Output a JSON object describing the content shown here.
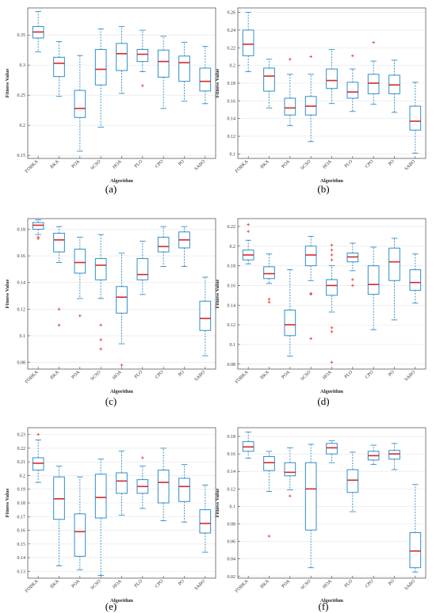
{
  "chart_data": [
    {
      "type": "box",
      "panel_label": "(a)",
      "xlabel": "Algorithm",
      "ylabel": "Fitness Value",
      "ylim": [
        0.145,
        0.395
      ],
      "yticks": [
        0.15,
        0.2,
        0.25,
        0.3,
        0.35
      ],
      "ytick_labels": [
        "0.15",
        "0.2",
        "0.25",
        "0.3",
        "0.35"
      ],
      "categories": [
        "FOBKA",
        "BKA",
        "POA",
        "SCSO",
        "HOA",
        "PLO",
        "CPO",
        "PO",
        "SABO"
      ],
      "boxes": [
        {
          "min": 0.322,
          "q1": 0.345,
          "median": 0.355,
          "q3": 0.364,
          "max": 0.389,
          "outliers": []
        },
        {
          "min": 0.248,
          "q1": 0.281,
          "median": 0.303,
          "q3": 0.313,
          "max": 0.339,
          "outliers": []
        },
        {
          "min": 0.157,
          "q1": 0.213,
          "median": 0.228,
          "q3": 0.258,
          "max": 0.316,
          "outliers": []
        },
        {
          "min": 0.197,
          "q1": 0.267,
          "median": 0.293,
          "q3": 0.326,
          "max": 0.36,
          "outliers": []
        },
        {
          "min": 0.253,
          "q1": 0.291,
          "median": 0.319,
          "q3": 0.336,
          "max": 0.364,
          "outliers": []
        },
        {
          "min": 0.289,
          "q1": 0.306,
          "median": 0.318,
          "q3": 0.326,
          "max": 0.358,
          "outliers": [
            0.266
          ]
        },
        {
          "min": 0.228,
          "q1": 0.28,
          "median": 0.306,
          "q3": 0.325,
          "max": 0.348,
          "outliers": []
        },
        {
          "min": 0.24,
          "q1": 0.273,
          "median": 0.304,
          "q3": 0.315,
          "max": 0.338,
          "outliers": []
        },
        {
          "min": 0.236,
          "q1": 0.257,
          "median": 0.273,
          "q3": 0.295,
          "max": 0.331,
          "outliers": []
        }
      ]
    },
    {
      "type": "box",
      "panel_label": "(b)",
      "xlabel": "Algorithm",
      "ylabel": "Fitness Value",
      "ylim": [
        0.095,
        0.265
      ],
      "yticks": [
        0.1,
        0.12,
        0.14,
        0.16,
        0.18,
        0.2,
        0.22,
        0.24,
        0.26
      ],
      "ytick_labels": [
        "0.1",
        "0.12",
        "0.14",
        "0.16",
        "0.18",
        "0.2",
        "0.22",
        "0.24",
        "0.26"
      ],
      "categories": [
        "FOBKA",
        "BKA",
        "POA",
        "SCSO",
        "HOA",
        "PLO",
        "CPO",
        "PO",
        "SABO"
      ],
      "boxes": [
        {
          "min": 0.193,
          "q1": 0.211,
          "median": 0.224,
          "q3": 0.24,
          "max": 0.26,
          "outliers": []
        },
        {
          "min": 0.152,
          "q1": 0.171,
          "median": 0.188,
          "q3": 0.197,
          "max": 0.207,
          "outliers": []
        },
        {
          "min": 0.132,
          "q1": 0.144,
          "median": 0.152,
          "q3": 0.163,
          "max": 0.19,
          "outliers": [
            0.207
          ]
        },
        {
          "min": 0.114,
          "q1": 0.144,
          "median": 0.154,
          "q3": 0.165,
          "max": 0.19,
          "outliers": [
            0.21
          ]
        },
        {
          "min": 0.157,
          "q1": 0.174,
          "median": 0.183,
          "q3": 0.196,
          "max": 0.218,
          "outliers": []
        },
        {
          "min": 0.148,
          "q1": 0.163,
          "median": 0.17,
          "q3": 0.181,
          "max": 0.196,
          "outliers": [
            0.211
          ]
        },
        {
          "min": 0.156,
          "q1": 0.168,
          "median": 0.18,
          "q3": 0.19,
          "max": 0.205,
          "outliers": [
            0.226
          ]
        },
        {
          "min": 0.147,
          "q1": 0.168,
          "median": 0.178,
          "q3": 0.189,
          "max": 0.206,
          "outliers": []
        },
        {
          "min": 0.101,
          "q1": 0.127,
          "median": 0.137,
          "q3": 0.154,
          "max": 0.181,
          "outliers": []
        }
      ]
    },
    {
      "type": "box",
      "panel_label": "(c)",
      "xlabel": "Algorithm",
      "ylabel": "Fitness Value",
      "ylim": [
        0.075,
        0.188
      ],
      "yticks": [
        0.08,
        0.1,
        0.12,
        0.14,
        0.16,
        0.18
      ],
      "ytick_labels": [
        "0.08",
        "0.1",
        "0.12",
        "0.14",
        "0.16",
        "0.18"
      ],
      "categories": [
        "FOBKA",
        "BKA",
        "POA",
        "SCSO",
        "HOA",
        "PLO",
        "CPO",
        "PO",
        "SABO"
      ],
      "boxes": [
        {
          "min": 0.176,
          "q1": 0.18,
          "median": 0.183,
          "q3": 0.185,
          "max": 0.187,
          "outliers": [
            0.174,
            0.173
          ]
        },
        {
          "min": 0.155,
          "q1": 0.163,
          "median": 0.172,
          "q3": 0.177,
          "max": 0.182,
          "outliers": [
            0.12,
            0.108
          ]
        },
        {
          "min": 0.128,
          "q1": 0.147,
          "median": 0.155,
          "q3": 0.165,
          "max": 0.174,
          "outliers": [
            0.115
          ]
        },
        {
          "min": 0.128,
          "q1": 0.142,
          "median": 0.153,
          "q3": 0.158,
          "max": 0.176,
          "outliers": [
            0.108,
            0.097,
            0.09
          ]
        },
        {
          "min": 0.094,
          "q1": 0.117,
          "median": 0.129,
          "q3": 0.137,
          "max": 0.162,
          "outliers": [
            0.078
          ]
        },
        {
          "min": 0.131,
          "q1": 0.142,
          "median": 0.146,
          "q3": 0.158,
          "max": 0.171,
          "outliers": []
        },
        {
          "min": 0.152,
          "q1": 0.163,
          "median": 0.167,
          "q3": 0.174,
          "max": 0.182,
          "outliers": []
        },
        {
          "min": 0.152,
          "q1": 0.166,
          "median": 0.172,
          "q3": 0.178,
          "max": 0.182,
          "outliers": []
        },
        {
          "min": 0.085,
          "q1": 0.104,
          "median": 0.113,
          "q3": 0.126,
          "max": 0.144,
          "outliers": []
        }
      ]
    },
    {
      "type": "box",
      "panel_label": "(d)",
      "xlabel": "Algorithm",
      "ylabel": "Fitness Value",
      "ylim": [
        0.075,
        0.228
      ],
      "yticks": [
        0.08,
        0.1,
        0.12,
        0.14,
        0.16,
        0.18,
        0.2,
        0.22
      ],
      "ytick_labels": [
        "0.08",
        "0.1",
        "0.12",
        "0.14",
        "0.16",
        "0.18",
        "0.2",
        "0.22"
      ],
      "categories": [
        "FOBKA",
        "BKA",
        "POA",
        "SCSO",
        "HOA",
        "PLO",
        "CPO",
        "PO",
        "SABO"
      ],
      "boxes": [
        {
          "min": 0.182,
          "q1": 0.186,
          "median": 0.191,
          "q3": 0.196,
          "max": 0.206,
          "outliers": [
            0.222,
            0.215
          ]
        },
        {
          "min": 0.162,
          "q1": 0.167,
          "median": 0.172,
          "q3": 0.179,
          "max": 0.192,
          "outliers": [
            0.146,
            0.143
          ]
        },
        {
          "min": 0.088,
          "q1": 0.109,
          "median": 0.12,
          "q3": 0.135,
          "max": 0.176,
          "outliers": []
        },
        {
          "min": 0.165,
          "q1": 0.18,
          "median": 0.191,
          "q3": 0.2,
          "max": 0.21,
          "outliers": [
            0.152,
            0.151,
            0.106
          ]
        },
        {
          "min": 0.133,
          "q1": 0.15,
          "median": 0.16,
          "q3": 0.166,
          "max": 0.18,
          "outliers": [
            0.201,
            0.196,
            0.191,
            0.186,
            0.117,
            0.113,
            0.082
          ]
        },
        {
          "min": 0.175,
          "q1": 0.184,
          "median": 0.189,
          "q3": 0.193,
          "max": 0.203,
          "outliers": [
            0.166,
            0.16
          ]
        },
        {
          "min": 0.115,
          "q1": 0.151,
          "median": 0.161,
          "q3": 0.18,
          "max": 0.199,
          "outliers": []
        },
        {
          "min": 0.125,
          "q1": 0.165,
          "median": 0.184,
          "q3": 0.198,
          "max": 0.208,
          "outliers": []
        },
        {
          "min": 0.142,
          "q1": 0.155,
          "median": 0.163,
          "q3": 0.176,
          "max": 0.192,
          "outliers": []
        }
      ]
    },
    {
      "type": "box",
      "panel_label": "(e)",
      "xlabel": "Algorithm",
      "ylabel": "Fitness Value",
      "ylim": [
        0.125,
        0.235
      ],
      "yticks": [
        0.13,
        0.14,
        0.15,
        0.16,
        0.17,
        0.18,
        0.19,
        0.2,
        0.21,
        0.22,
        0.23
      ],
      "ytick_labels": [
        "0.13",
        "0.14",
        "0.15",
        "0.16",
        "0.17",
        "0.18",
        "0.19",
        "0.2",
        "0.21",
        "0.22",
        "0.23"
      ],
      "categories": [
        "FOBKA",
        "BKA",
        "POA",
        "SCSO",
        "HOA",
        "PLO",
        "CPO",
        "PO",
        "SABO"
      ],
      "boxes": [
        {
          "min": 0.195,
          "q1": 0.204,
          "median": 0.209,
          "q3": 0.213,
          "max": 0.226,
          "outliers": [
            0.23
          ]
        },
        {
          "min": 0.134,
          "q1": 0.168,
          "median": 0.183,
          "q3": 0.199,
          "max": 0.207,
          "outliers": []
        },
        {
          "min": 0.131,
          "q1": 0.141,
          "median": 0.159,
          "q3": 0.172,
          "max": 0.199,
          "outliers": []
        },
        {
          "min": 0.127,
          "q1": 0.169,
          "median": 0.184,
          "q3": 0.201,
          "max": 0.212,
          "outliers": []
        },
        {
          "min": 0.171,
          "q1": 0.187,
          "median": 0.196,
          "q3": 0.202,
          "max": 0.218,
          "outliers": []
        },
        {
          "min": 0.176,
          "q1": 0.187,
          "median": 0.192,
          "q3": 0.197,
          "max": 0.207,
          "outliers": [
            0.213
          ]
        },
        {
          "min": 0.167,
          "q1": 0.18,
          "median": 0.195,
          "q3": 0.204,
          "max": 0.22,
          "outliers": []
        },
        {
          "min": 0.166,
          "q1": 0.181,
          "median": 0.192,
          "q3": 0.198,
          "max": 0.208,
          "outliers": []
        },
        {
          "min": 0.144,
          "q1": 0.158,
          "median": 0.165,
          "q3": 0.175,
          "max": 0.193,
          "outliers": []
        }
      ]
    },
    {
      "type": "box",
      "panel_label": "(f)",
      "xlabel": "Algorithm",
      "ylabel": "Fitness Value",
      "ylim": [
        0.018,
        0.19
      ],
      "yticks": [
        0.02,
        0.04,
        0.06,
        0.08,
        0.1,
        0.12,
        0.14,
        0.16,
        0.18
      ],
      "ytick_labels": [
        "0.02",
        "0.04",
        "0.06",
        "0.08",
        "0.1",
        "0.12",
        "0.14",
        "0.16",
        "0.18"
      ],
      "categories": [
        "FOBKA",
        "BKA",
        "POA",
        "SCSO",
        "HOA",
        "PLO",
        "CPO",
        "PO",
        "SABO"
      ],
      "boxes": [
        {
          "min": 0.155,
          "q1": 0.163,
          "median": 0.168,
          "q3": 0.174,
          "max": 0.185,
          "outliers": []
        },
        {
          "min": 0.117,
          "q1": 0.141,
          "median": 0.15,
          "q3": 0.157,
          "max": 0.163,
          "outliers": [
            0.066
          ]
        },
        {
          "min": 0.119,
          "q1": 0.135,
          "median": 0.139,
          "q3": 0.15,
          "max": 0.167,
          "outliers": [
            0.112
          ]
        },
        {
          "min": 0.03,
          "q1": 0.073,
          "median": 0.12,
          "q3": 0.15,
          "max": 0.171,
          "outliers": []
        },
        {
          "min": 0.15,
          "q1": 0.16,
          "median": 0.167,
          "q3": 0.172,
          "max": 0.175,
          "outliers": []
        },
        {
          "min": 0.094,
          "q1": 0.116,
          "median": 0.13,
          "q3": 0.142,
          "max": 0.162,
          "outliers": []
        },
        {
          "min": 0.148,
          "q1": 0.153,
          "median": 0.158,
          "q3": 0.163,
          "max": 0.17,
          "outliers": []
        },
        {
          "min": 0.142,
          "q1": 0.154,
          "median": 0.16,
          "q3": 0.164,
          "max": 0.172,
          "outliers": []
        },
        {
          "min": 0.025,
          "q1": 0.03,
          "median": 0.049,
          "q3": 0.07,
          "max": 0.125,
          "outliers": []
        }
      ]
    }
  ],
  "colors": {
    "box": "#2f8ec9",
    "whisker": "#2f8ec9",
    "median": "#d62728",
    "outlier": "#e3342f",
    "grid": "#e6e6e6",
    "axis": "#444444"
  }
}
